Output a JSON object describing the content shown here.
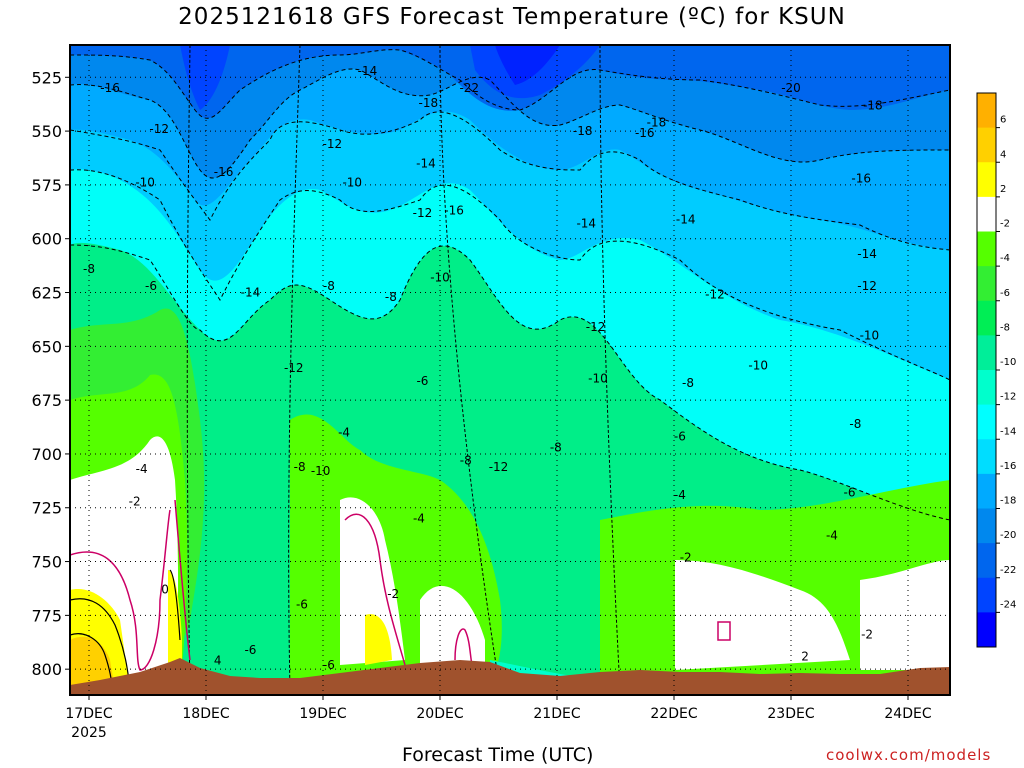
{
  "title": "2025121618 GFS Forecast Temperature (ºC) for KSUN",
  "xlabel": "Forecast Time (UTC)",
  "source": "coolwx.com/models",
  "chart_data": {
    "type": "heatmap",
    "y_axis": {
      "variable": "pressure (hPa)",
      "ticks": [
        525,
        550,
        575,
        600,
        625,
        650,
        675,
        700,
        725,
        750,
        775,
        800
      ],
      "range": [
        812,
        510
      ],
      "grid": "dotted"
    },
    "x_axis": {
      "ticks": [
        "17DEC",
        "18DEC",
        "19DEC",
        "20DEC",
        "21DEC",
        "22DEC",
        "23DEC",
        "24DEC"
      ],
      "first_tick_sub": "2025",
      "start_hours_before_first_tick": 3,
      "end_hours_after_last_tick": 7,
      "grid": "dotted"
    },
    "colorbar": {
      "labels": [
        6,
        4,
        2,
        -2,
        -4,
        -6,
        -8,
        -10,
        -12,
        -14,
        -16,
        -18,
        -20,
        -22,
        -24
      ],
      "colors": [
        "#ffb000",
        "#ffd000",
        "#ffff00",
        "#ffffff",
        "#55ff00",
        "#33ee33",
        "#00ee55",
        "#00ee99",
        "#00ffcc",
        "#00ffff",
        "#00ddff",
        "#00aaff",
        "#0088ee",
        "#0066ee",
        "#0044ff",
        "#0000ff"
      ]
    },
    "terrain_color": "#a0522d",
    "contour_labels": [
      {
        "t": 0.18,
        "p": 530,
        "v": "-16"
      },
      {
        "t": 0.6,
        "p": 549,
        "v": "-12"
      },
      {
        "t": 0.48,
        "p": 574,
        "v": "-10"
      },
      {
        "t": 0.0,
        "p": 614,
        "v": "-8"
      },
      {
        "t": 0.53,
        "p": 622,
        "v": "-6"
      },
      {
        "t": 0.45,
        "p": 707,
        "v": "-4"
      },
      {
        "t": 0.39,
        "p": 722,
        "v": "-2"
      },
      {
        "t": 0.65,
        "p": 763,
        "v": "0"
      },
      {
        "t": 1.1,
        "p": 796,
        "v": "4"
      },
      {
        "t": 1.38,
        "p": 791,
        "v": "-6"
      },
      {
        "t": 1.38,
        "p": 625,
        "v": "-14"
      },
      {
        "t": 1.15,
        "p": 569,
        "v": "-16"
      },
      {
        "t": 1.8,
        "p": 706,
        "v": "-8"
      },
      {
        "t": 1.98,
        "p": 708,
        "v": "-10"
      },
      {
        "t": 1.75,
        "p": 660,
        "v": "-12"
      },
      {
        "t": 1.82,
        "p": 770,
        "v": "-6"
      },
      {
        "t": 2.08,
        "p": 556,
        "v": "-12"
      },
      {
        "t": 2.05,
        "p": 798,
        "v": "-6"
      },
      {
        "t": 2.05,
        "p": 622,
        "v": "-8"
      },
      {
        "t": 2.18,
        "p": 690,
        "v": "-4"
      },
      {
        "t": 2.25,
        "p": 574,
        "v": "-10"
      },
      {
        "t": 2.38,
        "p": 522,
        "v": "-14"
      },
      {
        "t": 2.58,
        "p": 627,
        "v": "-8"
      },
      {
        "t": 2.6,
        "p": 765,
        "v": "-2"
      },
      {
        "t": 2.85,
        "p": 588,
        "v": "-12"
      },
      {
        "t": 2.9,
        "p": 537,
        "v": "-18"
      },
      {
        "t": 2.88,
        "p": 565,
        "v": "-14"
      },
      {
        "t": 2.85,
        "p": 666,
        "v": "-6"
      },
      {
        "t": 2.82,
        "p": 730,
        "v": "-4"
      },
      {
        "t": 3.0,
        "p": 618,
        "v": "-10"
      },
      {
        "t": 3.12,
        "p": 587,
        "v": "-16"
      },
      {
        "t": 3.25,
        "p": 530,
        "v": "-22"
      },
      {
        "t": 3.22,
        "p": 703,
        "v": "-8"
      },
      {
        "t": 3.5,
        "p": 706,
        "v": "-12"
      },
      {
        "t": 3.99,
        "p": 697,
        "v": "-8"
      },
      {
        "t": 4.22,
        "p": 550,
        "v": "-18"
      },
      {
        "t": 4.25,
        "p": 593,
        "v": "-14"
      },
      {
        "t": 4.33,
        "p": 641,
        "v": "-12"
      },
      {
        "t": 4.35,
        "p": 665,
        "v": "-10"
      },
      {
        "t": 4.85,
        "p": 546,
        "v": "-18"
      },
      {
        "t": 4.75,
        "p": 551,
        "v": "-16"
      },
      {
        "t": 5.1,
        "p": 591,
        "v": "-14"
      },
      {
        "t": 5.12,
        "p": 667,
        "v": "-8"
      },
      {
        "t": 5.05,
        "p": 719,
        "v": "-4"
      },
      {
        "t": 5.05,
        "p": 692,
        "v": "-6"
      },
      {
        "t": 5.1,
        "p": 748,
        "v": "-2"
      },
      {
        "t": 5.35,
        "p": 626,
        "v": "-12"
      },
      {
        "t": 5.72,
        "p": 659,
        "v": "-10"
      },
      {
        "t": 6.0,
        "p": 530,
        "v": "-20"
      },
      {
        "t": 6.12,
        "p": 794,
        "v": "2"
      },
      {
        "t": 6.55,
        "p": 686,
        "v": "-8"
      },
      {
        "t": 6.5,
        "p": 718,
        "v": "-6"
      },
      {
        "t": 6.35,
        "p": 738,
        "v": "-4"
      },
      {
        "t": 6.6,
        "p": 572,
        "v": "-16"
      },
      {
        "t": 6.7,
        "p": 538,
        "v": "-18"
      },
      {
        "t": 6.65,
        "p": 607,
        "v": "-14"
      },
      {
        "t": 6.65,
        "p": 622,
        "v": "-12"
      },
      {
        "t": 6.65,
        "p": 784,
        "v": "-2"
      },
      {
        "t": 6.67,
        "p": 645,
        "v": "-10"
      }
    ]
  }
}
